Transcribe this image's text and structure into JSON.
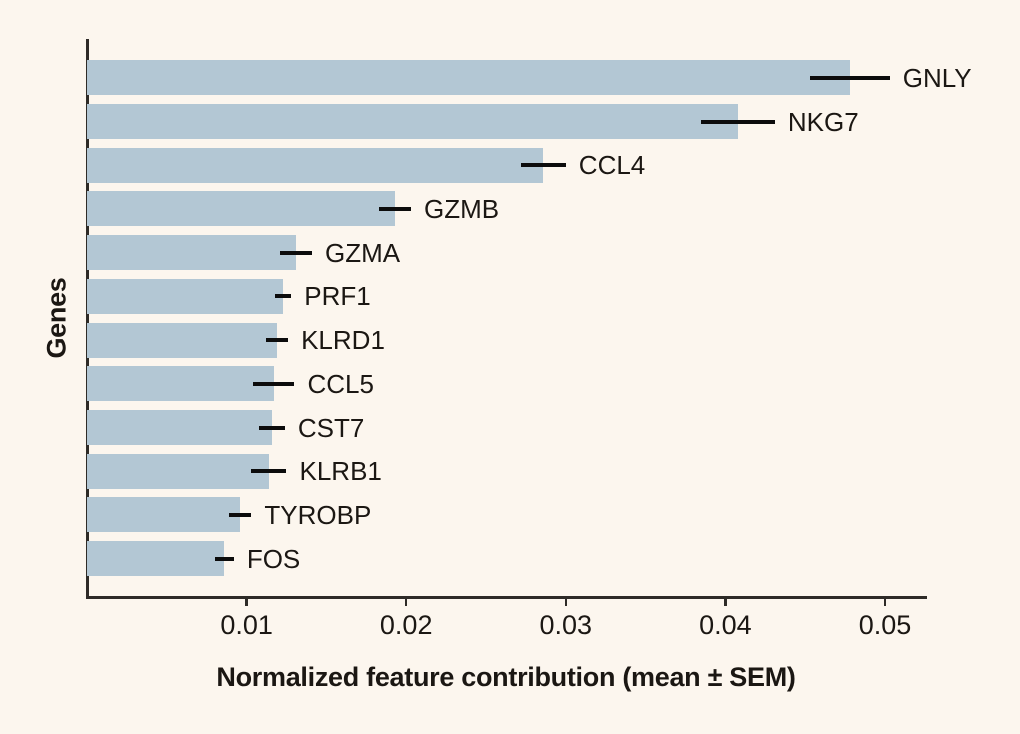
{
  "chart_data": {
    "type": "bar",
    "orientation": "horizontal",
    "title": "",
    "xlabel": "Normalized feature contribution (mean ± SEM)",
    "ylabel": "Genes",
    "categories": [
      "GNLY",
      "NKG7",
      "CCL4",
      "GZMB",
      "GZMA",
      "PRF1",
      "KLRD1",
      "CCL5",
      "CST7",
      "KLRB1",
      "TYROBP",
      "FOS"
    ],
    "values": [
      0.0478,
      0.0408,
      0.0286,
      0.0193,
      0.0131,
      0.0123,
      0.0119,
      0.0117,
      0.0116,
      0.0114,
      0.0096,
      0.0086
    ],
    "errors": [
      0.0025,
      0.0023,
      0.0014,
      0.001,
      0.001,
      0.0005,
      0.0007,
      0.0013,
      0.0008,
      0.0011,
      0.0007,
      0.0006
    ],
    "error_type": "SEM",
    "xlim": [
      0,
      0.0525
    ],
    "xticks": [
      0.01,
      0.02,
      0.03,
      0.04,
      0.05
    ],
    "xtick_labels": [
      "0.01",
      "0.02",
      "0.03",
      "0.04",
      "0.05"
    ],
    "grid": false,
    "legend": null,
    "colors": {
      "bar": "#b3c7d4",
      "error_bar": "#0c0c0c",
      "background": "#fcf6ee",
      "axis": "#2e2b27",
      "text": "#1b1713"
    }
  }
}
